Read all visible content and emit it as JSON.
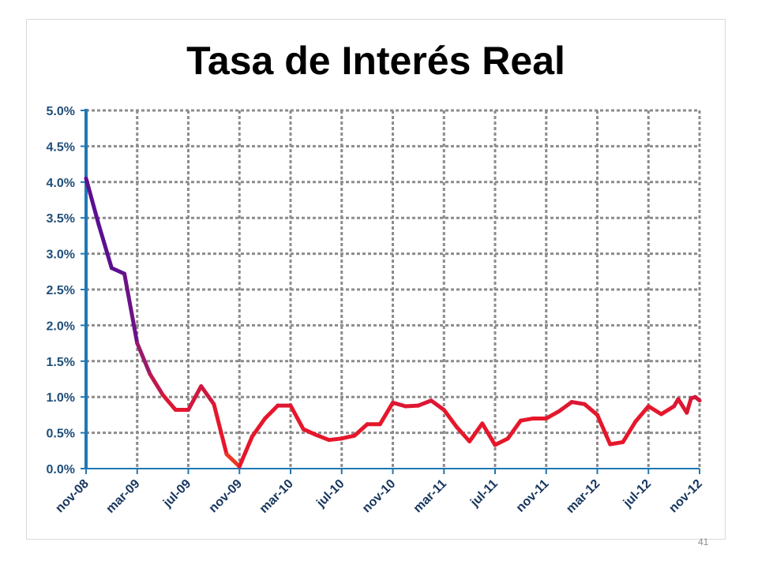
{
  "slide": {
    "page_number": "41"
  },
  "chart_data": {
    "type": "line",
    "title": "Tasa de Interés Real",
    "xlabel": "",
    "ylabel": "",
    "ylim": [
      0,
      5
    ],
    "grid": true,
    "legend": "none",
    "y_ticks": [
      "0.0%",
      "0.5%",
      "1.0%",
      "1.5%",
      "2.0%",
      "2.5%",
      "3.0%",
      "3.5%",
      "4.0%",
      "4.5%",
      "5.0%"
    ],
    "x_ticks": [
      "nov-08",
      "mar-09",
      "jul-09",
      "nov-09",
      "mar-10",
      "jul-10",
      "nov-10",
      "mar-11",
      "jul-11",
      "nov-11",
      "mar-12",
      "jul-12",
      "nov-12"
    ],
    "x_range_months": [
      "nov-08",
      "nov-12"
    ],
    "line_colors": [
      "#5b0f91",
      "#9b1a6a",
      "#e6172b",
      "#f06418"
    ],
    "axis_color": "#1f77b4",
    "grid_color": "#8c8c8c",
    "series": [
      {
        "points": [
          [
            "nov-08",
            4.05
          ],
          [
            "dic-08",
            3.4
          ],
          [
            "ene-09",
            2.8
          ],
          [
            "feb-09",
            2.72
          ],
          [
            "mar-09",
            1.75
          ],
          [
            "abr-09",
            1.32
          ],
          [
            "may-09",
            1.03
          ],
          [
            "jun-09",
            0.82
          ],
          [
            "jul-09",
            0.82
          ],
          [
            "ago-09",
            1.15
          ],
          [
            "sep-09",
            0.9
          ],
          [
            "oct-09",
            0.2
          ],
          [
            "nov-09",
            0.03
          ],
          [
            "dic-09",
            0.45
          ],
          [
            "ene-10",
            0.7
          ],
          [
            "feb-10",
            0.88
          ],
          [
            "mar-10",
            0.88
          ],
          [
            "abr-10",
            0.55
          ],
          [
            "may-10",
            0.47
          ],
          [
            "jun-10",
            0.4
          ],
          [
            "jul-10",
            0.42
          ],
          [
            "ago-10",
            0.46
          ],
          [
            "sep-10",
            0.62
          ],
          [
            "oct-10",
            0.62
          ],
          [
            "nov-10",
            0.92
          ],
          [
            "dic-10",
            0.87
          ],
          [
            "ene-11",
            0.88
          ],
          [
            "feb-11",
            0.95
          ],
          [
            "mar-11",
            0.82
          ],
          [
            "abr-11",
            0.58
          ],
          [
            "may-11",
            0.38
          ],
          [
            "jun-11",
            0.63
          ],
          [
            "jul-11",
            0.33
          ],
          [
            "ago-11",
            0.42
          ],
          [
            "sep-11",
            0.67
          ],
          [
            "oct-11",
            0.7
          ],
          [
            "nov-11",
            0.7
          ],
          [
            "dic-11",
            0.8
          ],
          [
            "ene-12",
            0.93
          ],
          [
            "feb-12",
            0.9
          ],
          [
            "mar-12",
            0.75
          ],
          [
            "abr-12",
            0.34
          ],
          [
            "may-12",
            0.37
          ],
          [
            "jun-12",
            0.66
          ],
          [
            "jul-12",
            0.87
          ],
          [
            "ago-12",
            0.76
          ],
          [
            "sep-12",
            0.87
          ],
          [
            "sep-12b",
            0.97
          ],
          [
            "oct-12",
            0.78
          ],
          [
            "oct-12b",
            0.98
          ],
          [
            "oct-12c",
            1.0
          ],
          [
            "nov-12",
            0.95
          ]
        ]
      }
    ]
  }
}
